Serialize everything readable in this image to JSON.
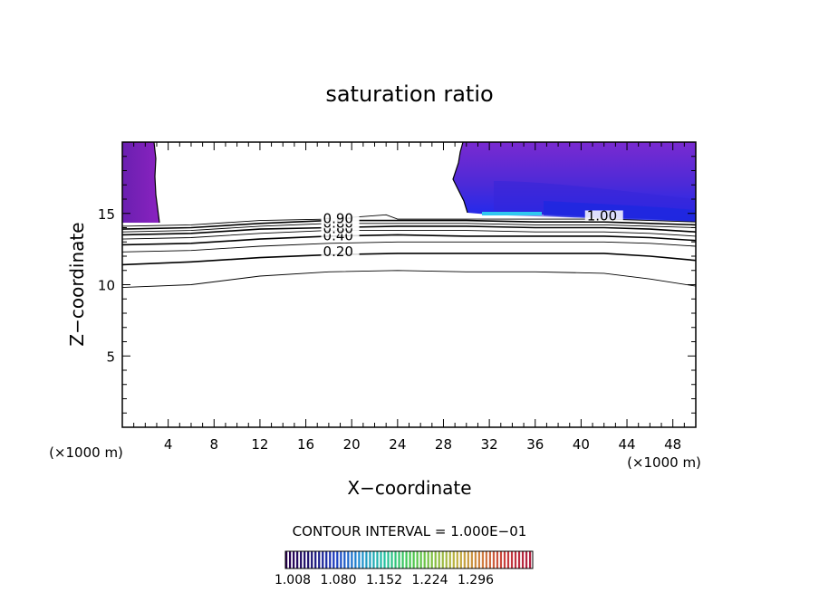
{
  "chart_data": {
    "type": "contour",
    "title": "saturation ratio",
    "xlabel": "X−coordinate",
    "ylabel": "Z−coordinate",
    "x_unit_left": "(×1000 m)",
    "x_unit_right": "(×1000 m)",
    "xlim": [
      0,
      50
    ],
    "ylim": [
      0,
      20
    ],
    "x_ticks": [
      "4",
      "8",
      "12",
      "16",
      "20",
      "24",
      "28",
      "32",
      "36",
      "40",
      "44",
      "48"
    ],
    "y_ticks": [
      "5",
      "10",
      "15"
    ],
    "contour_interval_label": "CONTOUR INTERVAL = 1.000E−01",
    "contour_levels": [
      0.1,
      0.2,
      0.3,
      0.4,
      0.5,
      0.6,
      0.7,
      0.8,
      0.9,
      1.0
    ],
    "contour_labels": [
      {
        "text": "0.20",
        "x": 17.5,
        "y": 12.2
      },
      {
        "text": "0.40",
        "x": 17.5,
        "y": 13.3
      },
      {
        "text": "0.60",
        "x": 17.5,
        "y": 13.8
      },
      {
        "text": "0.80",
        "x": 17.5,
        "y": 14.2
      },
      {
        "text": "0.90",
        "x": 17.5,
        "y": 14.5
      },
      {
        "text": "1.00",
        "x": 40.5,
        "y": 14.7
      }
    ],
    "contour_lines": [
      {
        "level": 0.1,
        "points": [
          [
            0,
            9.8
          ],
          [
            6,
            10.0
          ],
          [
            12,
            10.6
          ],
          [
            18,
            10.9
          ],
          [
            24,
            11.0
          ],
          [
            30,
            10.9
          ],
          [
            36,
            10.9
          ],
          [
            42,
            10.8
          ],
          [
            46,
            10.4
          ],
          [
            50,
            9.9
          ]
        ]
      },
      {
        "level": 0.2,
        "points": [
          [
            0,
            11.4
          ],
          [
            6,
            11.6
          ],
          [
            12,
            11.9
          ],
          [
            18,
            12.1
          ],
          [
            24,
            12.2
          ],
          [
            30,
            12.2
          ],
          [
            36,
            12.2
          ],
          [
            42,
            12.2
          ],
          [
            46,
            12.0
          ],
          [
            50,
            11.7
          ]
        ]
      },
      {
        "level": 0.3,
        "points": [
          [
            0,
            12.3
          ],
          [
            6,
            12.4
          ],
          [
            12,
            12.7
          ],
          [
            18,
            12.9
          ],
          [
            24,
            13.0
          ],
          [
            30,
            13.0
          ],
          [
            36,
            13.0
          ],
          [
            42,
            13.0
          ],
          [
            46,
            12.9
          ],
          [
            50,
            12.7
          ]
        ]
      },
      {
        "level": 0.4,
        "points": [
          [
            0,
            12.8
          ],
          [
            6,
            12.9
          ],
          [
            12,
            13.2
          ],
          [
            18,
            13.4
          ],
          [
            24,
            13.5
          ],
          [
            30,
            13.4
          ],
          [
            36,
            13.4
          ],
          [
            42,
            13.4
          ],
          [
            46,
            13.3
          ],
          [
            50,
            13.1
          ]
        ]
      },
      {
        "level": 0.5,
        "points": [
          [
            0,
            13.2
          ],
          [
            6,
            13.3
          ],
          [
            12,
            13.6
          ],
          [
            18,
            13.8
          ],
          [
            24,
            13.8
          ],
          [
            30,
            13.8
          ],
          [
            36,
            13.7
          ],
          [
            42,
            13.7
          ],
          [
            46,
            13.6
          ],
          [
            50,
            13.4
          ]
        ]
      },
      {
        "level": 0.6,
        "points": [
          [
            0,
            13.5
          ],
          [
            6,
            13.6
          ],
          [
            12,
            13.9
          ],
          [
            18,
            14.0
          ],
          [
            24,
            14.1
          ],
          [
            30,
            14.1
          ],
          [
            36,
            14.0
          ],
          [
            42,
            14.0
          ],
          [
            46,
            13.9
          ],
          [
            50,
            13.7
          ]
        ]
      },
      {
        "level": 0.7,
        "points": [
          [
            0,
            13.7
          ],
          [
            6,
            13.8
          ],
          [
            12,
            14.1
          ],
          [
            18,
            14.3
          ],
          [
            24,
            14.3
          ],
          [
            30,
            14.3
          ],
          [
            36,
            14.2
          ],
          [
            42,
            14.2
          ],
          [
            46,
            14.1
          ],
          [
            50,
            14.0
          ]
        ]
      },
      {
        "level": 0.8,
        "points": [
          [
            0,
            13.9
          ],
          [
            6,
            14.0
          ],
          [
            12,
            14.3
          ],
          [
            18,
            14.5
          ],
          [
            24,
            14.5
          ],
          [
            30,
            14.5
          ],
          [
            36,
            14.4
          ],
          [
            42,
            14.4
          ],
          [
            46,
            14.3
          ],
          [
            50,
            14.2
          ]
        ]
      },
      {
        "level": 0.9,
        "points": [
          [
            0,
            14.1
          ],
          [
            6,
            14.2
          ],
          [
            12,
            14.5
          ],
          [
            18,
            14.6
          ],
          [
            23,
            14.9
          ],
          [
            24,
            14.6
          ],
          [
            30,
            14.6
          ],
          [
            36,
            14.6
          ],
          [
            42,
            14.6
          ],
          [
            46,
            14.5
          ],
          [
            50,
            14.4
          ]
        ]
      }
    ],
    "shaded_regions": [
      {
        "name": "left",
        "x_range": [
          0,
          3.1
        ],
        "y_range": [
          14.5,
          20
        ]
      },
      {
        "name": "right",
        "x_range": [
          29.6,
          50
        ],
        "y_range": [
          14.5,
          20
        ]
      }
    ],
    "colorbar": {
      "tick_labels": [
        "1.008",
        "1.080",
        "1.152",
        "1.224",
        "1.296"
      ],
      "colors": [
        "#2a0050",
        "#1a1070",
        "#1a3ac0",
        "#1c8ad0",
        "#20c0a0",
        "#40c850",
        "#80c040",
        "#c0b040",
        "#d08040",
        "#c83c3c",
        "#b02040"
      ]
    },
    "grid": false,
    "legend": "none"
  }
}
